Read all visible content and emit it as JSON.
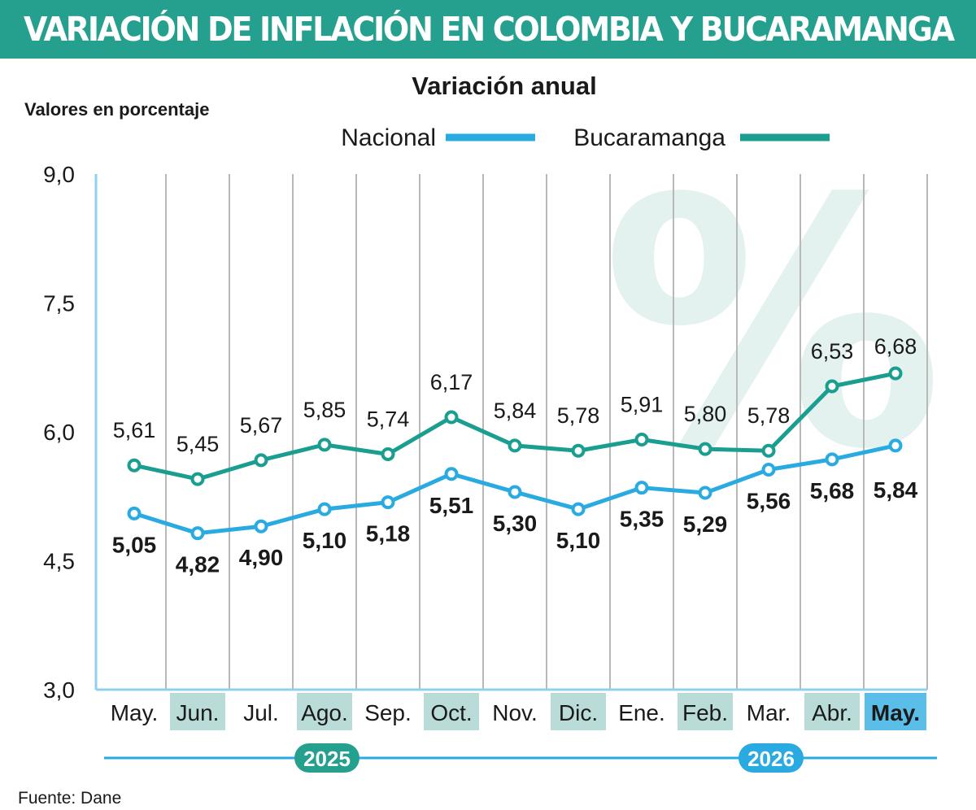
{
  "header": {
    "title": "VARIACIÓN DE INFLACIÓN EN COLOMBIA Y BUCARAMANGA"
  },
  "chart_data": {
    "type": "line",
    "subtitle": "Variación anual",
    "ylabel": "Valores en porcentaje",
    "categories": [
      "May.",
      "Jun.",
      "Jul.",
      "Ago.",
      "Sep.",
      "Oct.",
      "Nov.",
      "Dic.",
      "Ene.",
      "Feb.",
      "Mar.",
      "Abr.",
      "May."
    ],
    "series": [
      {
        "name": "Nacional",
        "color": "#29abe2",
        "values": [
          5.05,
          4.82,
          4.9,
          5.1,
          5.18,
          5.51,
          5.3,
          5.1,
          5.35,
          5.29,
          5.56,
          5.68,
          5.84
        ],
        "labels": [
          "5,05",
          "4,82",
          "4,90",
          "5,10",
          "5,18",
          "5,51",
          "5,30",
          "5,10",
          "5,35",
          "5,29",
          "5,56",
          "5,68",
          "5,84"
        ]
      },
      {
        "name": "Bucaramanga",
        "color": "#1a9e8f",
        "values": [
          5.61,
          5.45,
          5.67,
          5.85,
          5.74,
          6.17,
          5.84,
          5.78,
          5.91,
          5.8,
          5.78,
          6.53,
          6.68
        ],
        "labels": [
          "5,61",
          "5,45",
          "5,67",
          "5,85",
          "5,74",
          "6,17",
          "5,84",
          "5,78",
          "5,91",
          "5,80",
          "5,78",
          "6,53",
          "6,68"
        ]
      }
    ],
    "ylim": [
      3.0,
      9.0
    ],
    "yticks": [
      3.0,
      4.5,
      6.0,
      7.5,
      9.0
    ],
    "ytick_labels": [
      "3,0",
      "4,5",
      "6,0",
      "7,5",
      "9,0"
    ],
    "years": [
      {
        "label": "2025",
        "from": 0,
        "to": 7
      },
      {
        "label": "2026",
        "from": 8,
        "to": 12
      }
    ],
    "highlight_category": 12,
    "watermark": "%",
    "colors": {
      "accent": "#25a08f",
      "nacional": "#29abe2",
      "bucaramanga": "#1a9e8f",
      "month_shade": "#b9dcd9",
      "month_highlight": "#5bbee8"
    }
  },
  "footer": {
    "source": "Fuente: Dane"
  }
}
